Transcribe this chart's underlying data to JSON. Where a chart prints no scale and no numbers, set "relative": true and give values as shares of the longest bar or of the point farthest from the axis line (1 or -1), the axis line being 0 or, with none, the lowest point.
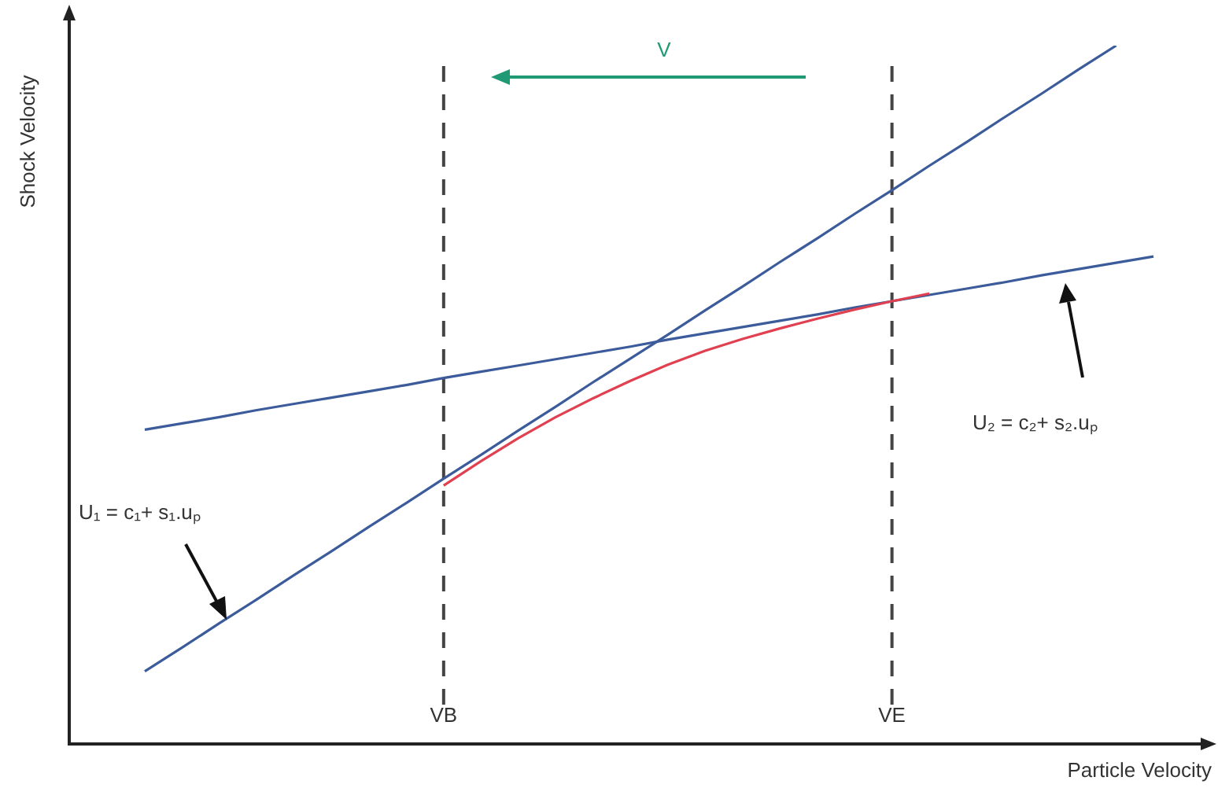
{
  "chart_data": {
    "type": "line",
    "relative": true,
    "xlabel": "Particle Velocity",
    "ylabel": "Shock Velocity",
    "tick_labels": "x",
    "categories": [
      null,
      null,
      null,
      null,
      null,
      null,
      null,
      null,
      "VB",
      null,
      null,
      null,
      null,
      null,
      null,
      null,
      null,
      null,
      null,
      null,
      "VE",
      null,
      null,
      null,
      null,
      null,
      null,
      null
    ],
    "series": [
      {
        "color": "#3b5b9b",
        "values": [
          0.104,
          0.138,
          0.173,
          0.207,
          0.242,
          0.276,
          0.311,
          0.345,
          0.38,
          0.414,
          0.449,
          0.483,
          0.518,
          0.552,
          0.586,
          0.621,
          0.655,
          0.69,
          0.724,
          0.759,
          0.793,
          0.828,
          0.862,
          0.897,
          0.931,
          0.966,
          1.0,
          null
        ]
      },
      {
        "color": "#3b5b9b",
        "values": [
          0.45,
          0.459,
          0.468,
          0.478,
          0.487,
          0.496,
          0.505,
          0.514,
          0.524,
          0.533,
          0.542,
          0.551,
          0.56,
          0.569,
          0.579,
          0.588,
          0.597,
          0.606,
          0.615,
          0.625,
          0.634,
          0.643,
          0.652,
          0.661,
          0.671,
          0.68,
          0.689,
          0.698
        ]
      },
      {
        "color": "#e0404f",
        "values": [
          null,
          null,
          null,
          null,
          null,
          null,
          null,
          null,
          0.37,
          0.405,
          0.438,
          0.468,
          0.495,
          0.52,
          0.543,
          0.563,
          0.58,
          0.595,
          0.609,
          0.622,
          0.634,
          0.645,
          null,
          null,
          null,
          null,
          null,
          null
        ]
      }
    ],
    "ref_lines": [
      {
        "axis": "x",
        "value": "VB",
        "color": "#444444",
        "line_style": "dashed"
      },
      {
        "axis": "x",
        "value": "VE",
        "color": "#444444",
        "line_style": "dashed"
      }
    ],
    "annotations": [
      "V",
      "U₁ = c₁+ s₁.uₚ",
      "U₂ = c₂+ s₂.uₚ"
    ],
    "marker": "none",
    "line_style": "solid"
  }
}
